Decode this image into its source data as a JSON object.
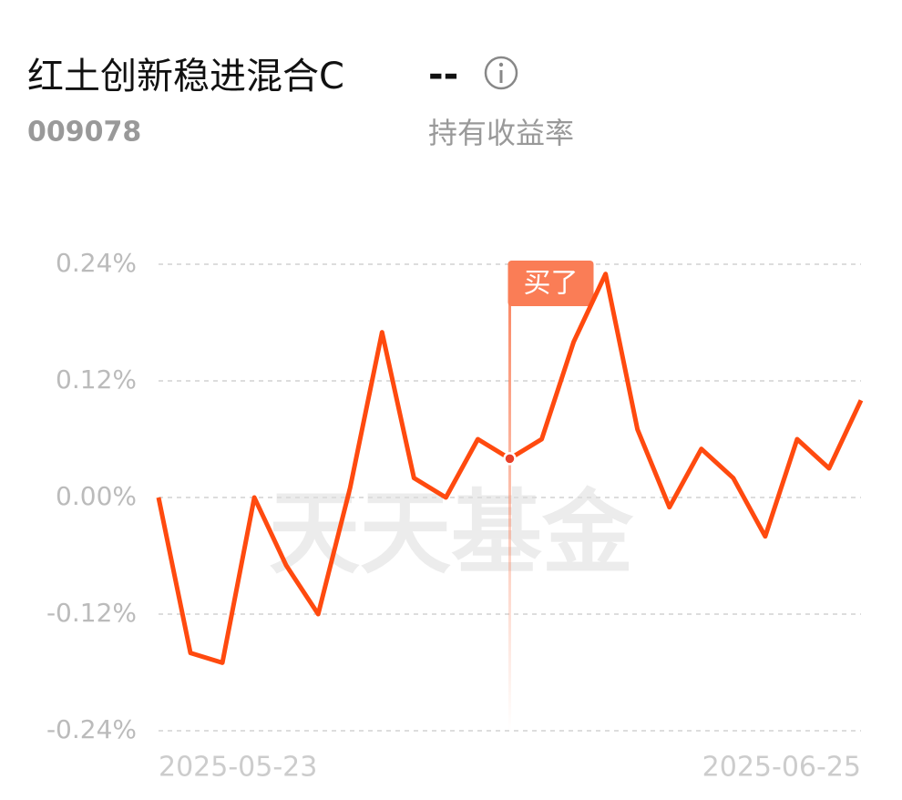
{
  "chart_data": {
    "type": "line",
    "title": "红土创新稳进混合C",
    "title_value": "--",
    "code": "009078",
    "subtitle": "持有收益率",
    "watermark": "天天基金",
    "categories": [
      "2025-05-23",
      null,
      null,
      null,
      null,
      null,
      null,
      null,
      null,
      null,
      null,
      null,
      null,
      null,
      null,
      null,
      null,
      null,
      null,
      null,
      null,
      null,
      "2025-06-25"
    ],
    "series": [
      {
        "name": "持有收益率",
        "color": "#ff4a0f",
        "values": [
          0,
          -0.16,
          -0.17,
          0,
          -0.07,
          -0.12,
          0.01,
          0.17,
          0.02,
          0,
          0.06,
          0.04,
          0.06,
          0.16,
          0.23,
          0.07,
          -0.01,
          0.05,
          0.02,
          -0.04,
          0.06,
          0.03,
          0.1
        ]
      }
    ],
    "ylim": [
      -0.24,
      0.24
    ],
    "yticks": [
      {
        "value": 0.24,
        "label": "0.24%"
      },
      {
        "value": 0.12,
        "label": "0.12%"
      },
      {
        "value": 0,
        "label": "0.00%"
      },
      {
        "value": -0.12,
        "label": "-0.12%"
      },
      {
        "value": -0.24,
        "label": "-0.24%"
      }
    ],
    "grid": true,
    "buy_marker": {
      "text": "买了",
      "index": 11
    }
  }
}
